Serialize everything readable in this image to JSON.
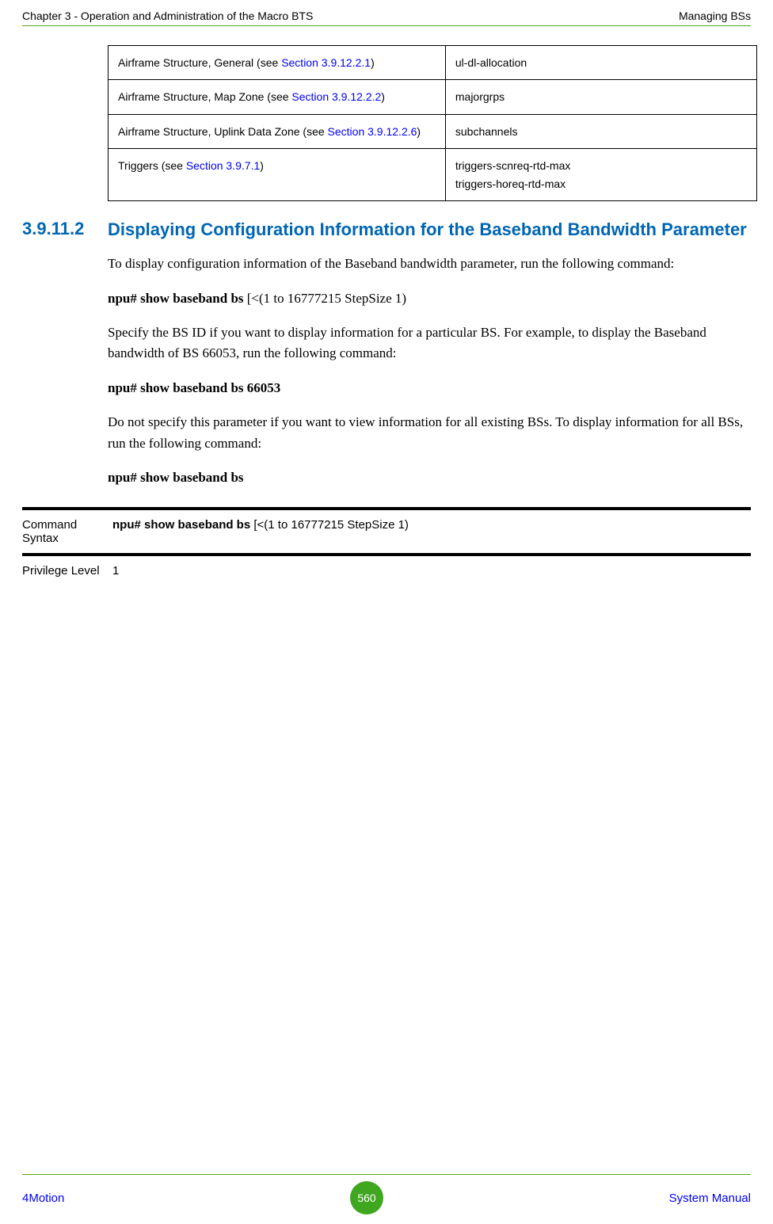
{
  "header": {
    "left": "Chapter 3 - Operation and Administration of the Macro BTS",
    "right": "Managing BSs"
  },
  "ref_table": {
    "rows": [
      {
        "label_prefix": "Airframe Structure, General (see ",
        "label_link": "Section 3.9.12.2.1",
        "label_suffix": ")",
        "value": "ul-dl-allocation"
      },
      {
        "label_prefix": "Airframe Structure, Map Zone (see ",
        "label_link": "Section 3.9.12.2.2",
        "label_suffix": ")",
        "value": "majorgrps"
      },
      {
        "label_prefix": "Airframe Structure, Uplink Data Zone (see ",
        "label_link": "Section 3.9.12.2.6",
        "label_suffix": ")",
        "value": "subchannels"
      },
      {
        "label_prefix": "Triggers (see ",
        "label_link": "Section 3.9.7.1",
        "label_suffix": ")",
        "value": "triggers-scnreq-rtd-max\ntriggers-horeq-rtd-max"
      }
    ]
  },
  "section": {
    "number": "3.9.11.2",
    "title": "Displaying Configuration Information for the Baseband Bandwidth Parameter"
  },
  "paragraphs": {
    "p1": "To display configuration information of the Baseband bandwidth parameter, run the following command:",
    "cmd1_bold": "npu# show baseband bs",
    "cmd1_rest": " [<(1 to 16777215 StepSize 1)",
    "p2": "Specify the BS ID if you want to display information for a particular BS. For example, to display the Baseband bandwidth of BS 66053, run the following command:",
    "cmd2": "npu# show baseband bs 66053",
    "p3": "Do not specify this parameter if you want to view information for all existing BSs. To display information for all BSs, run the following command:",
    "cmd3": "npu# show baseband bs"
  },
  "cmd_table": {
    "rows": [
      {
        "label": "Command Syntax",
        "value_bold": "npu# show baseband bs",
        "value_rest": " [<(1 to 16777215 StepSize 1)"
      },
      {
        "label": "Privilege Level",
        "value_bold": "1",
        "value_rest": ""
      }
    ]
  },
  "footer": {
    "left": "4Motion",
    "page": "560",
    "right": "System Manual"
  },
  "colors": {
    "link": "#0000ee",
    "heading": "#0066b3",
    "rule": "#58a618",
    "badge": "#3fa61f"
  }
}
